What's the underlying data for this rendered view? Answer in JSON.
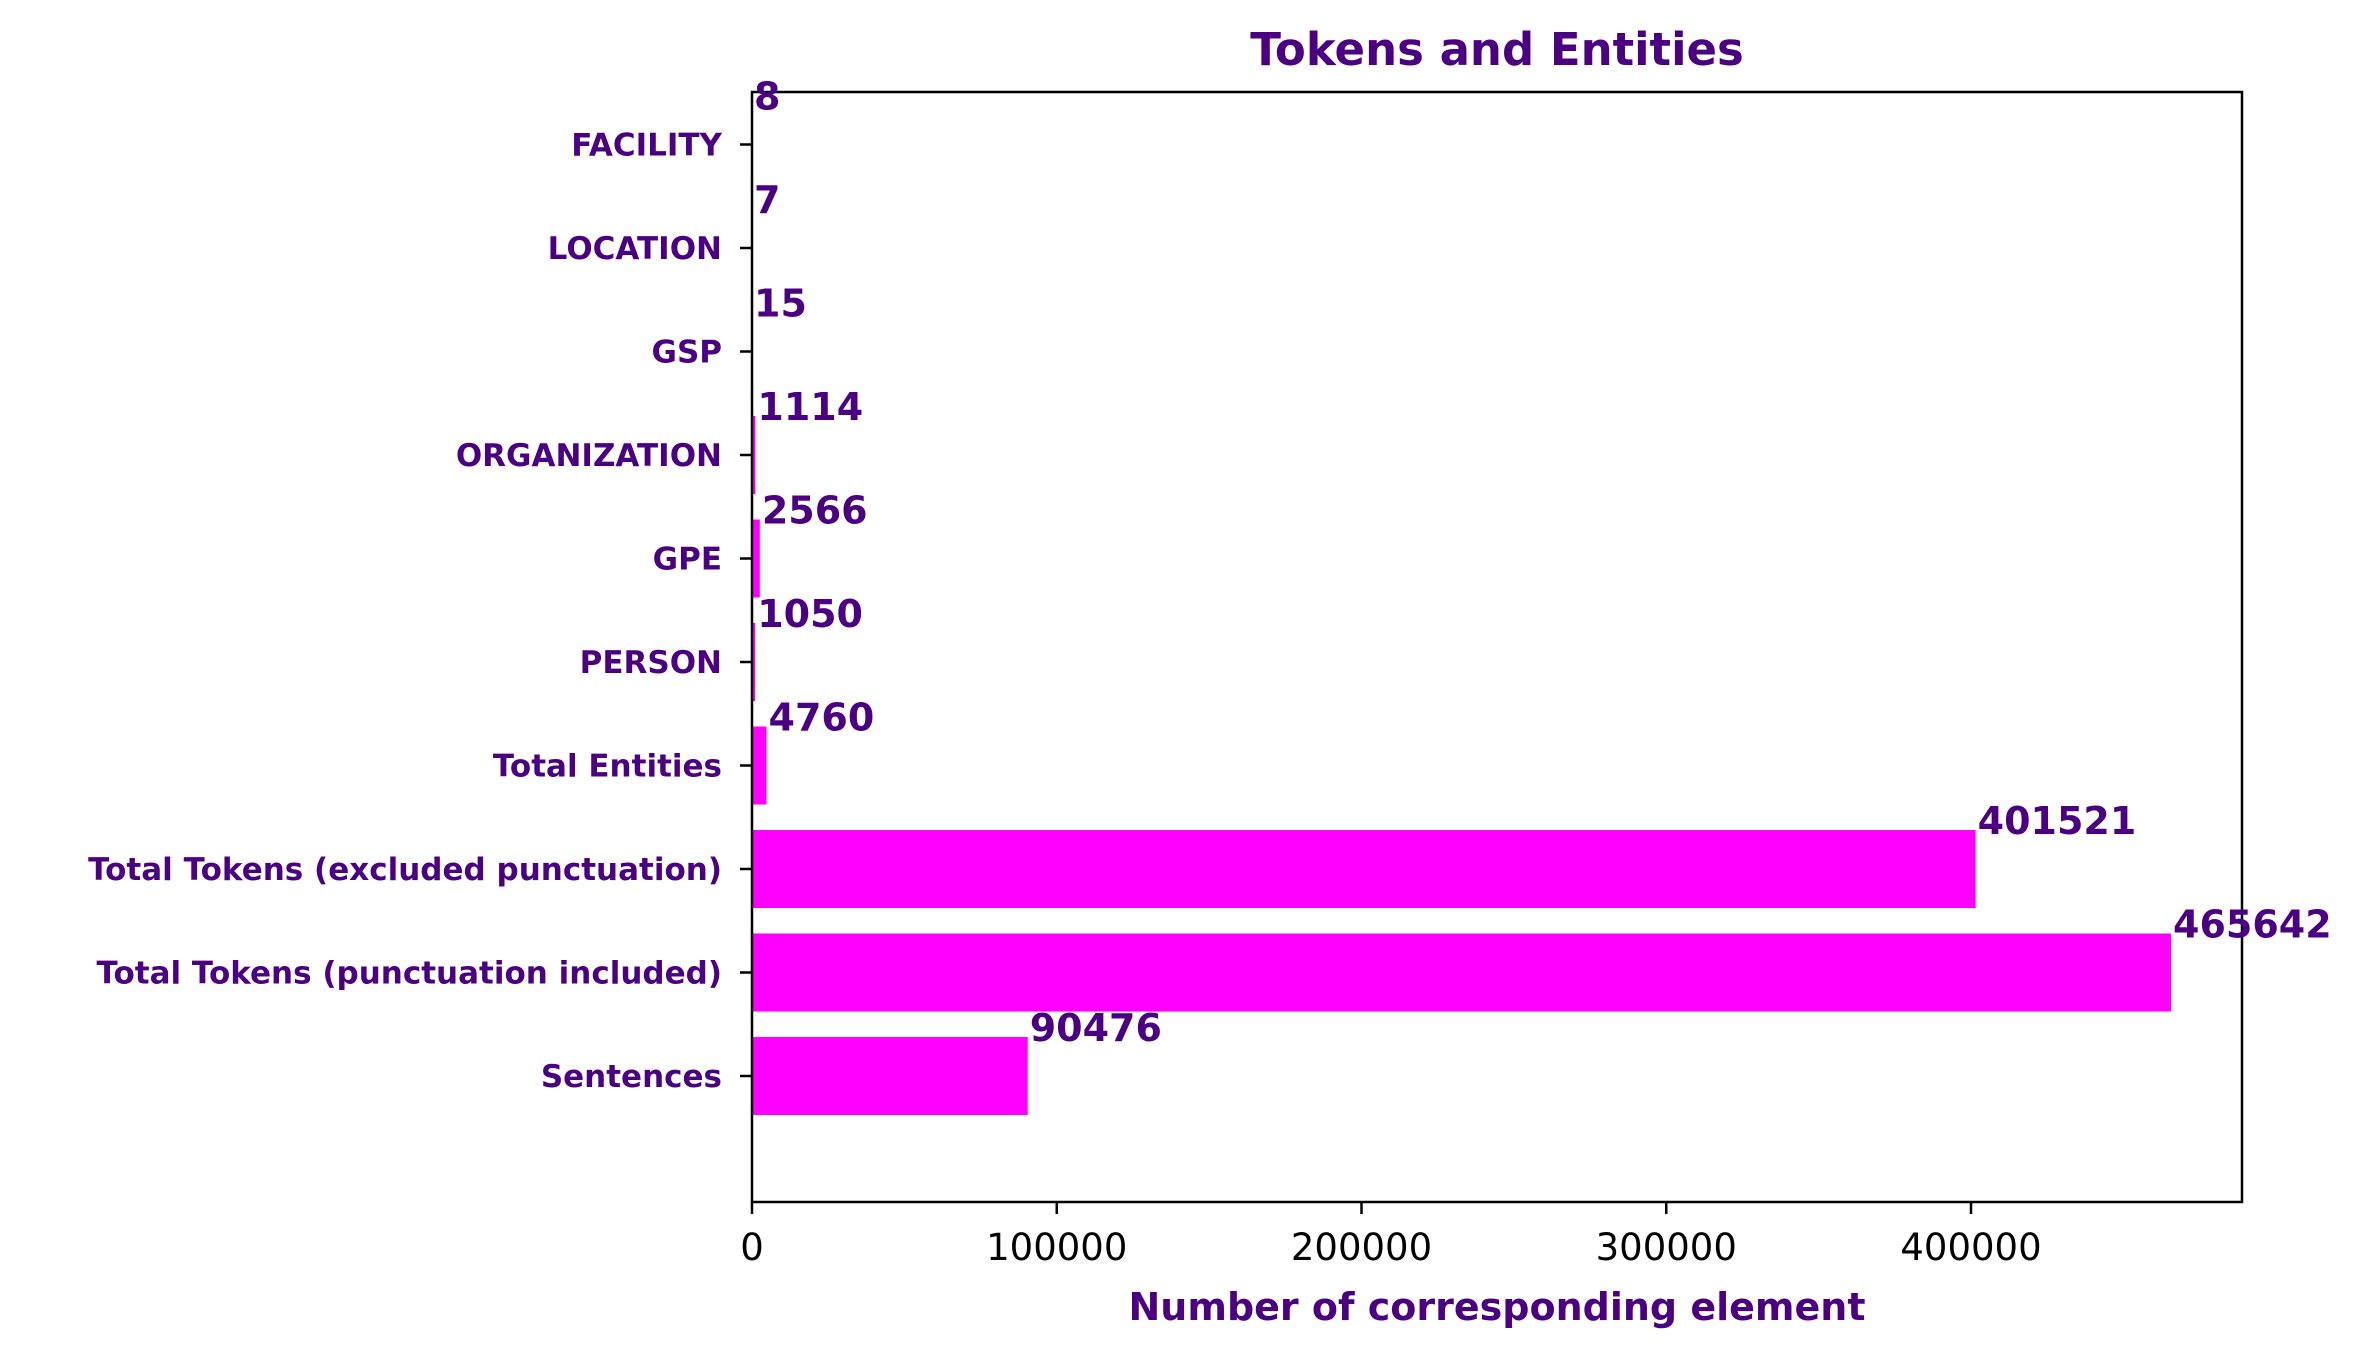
{
  "colors": {
    "bar": "#ff00ff",
    "text": "#4b0082",
    "axis": "#000000",
    "background": "#ffffff"
  },
  "chart_data": {
    "type": "bar",
    "orientation": "horizontal",
    "title": "Tokens and Entities",
    "xlabel": "Number of corresponding element",
    "ylabel": "",
    "categories": [
      "Sentences",
      "Total Tokens (punctuation included)",
      "Total Tokens (excluded punctuation)",
      "Total Entities",
      "PERSON",
      "GPE",
      "ORGANIZATION",
      "GSP",
      "LOCATION",
      "FACILITY"
    ],
    "values": [
      90476,
      465642,
      401521,
      4760,
      1050,
      2566,
      1114,
      15,
      7,
      8
    ],
    "data_labels": [
      "90476",
      "465642",
      "401521",
      "4760",
      "1050",
      "2566",
      "1114",
      "15",
      "7",
      "8"
    ],
    "xlim": [
      0,
      488924
    ],
    "xticks": [
      0,
      100000,
      200000,
      300000,
      400000
    ],
    "xtick_labels": [
      "0",
      "100000",
      "200000",
      "300000",
      "400000"
    ],
    "grid": false,
    "legend": "none"
  }
}
